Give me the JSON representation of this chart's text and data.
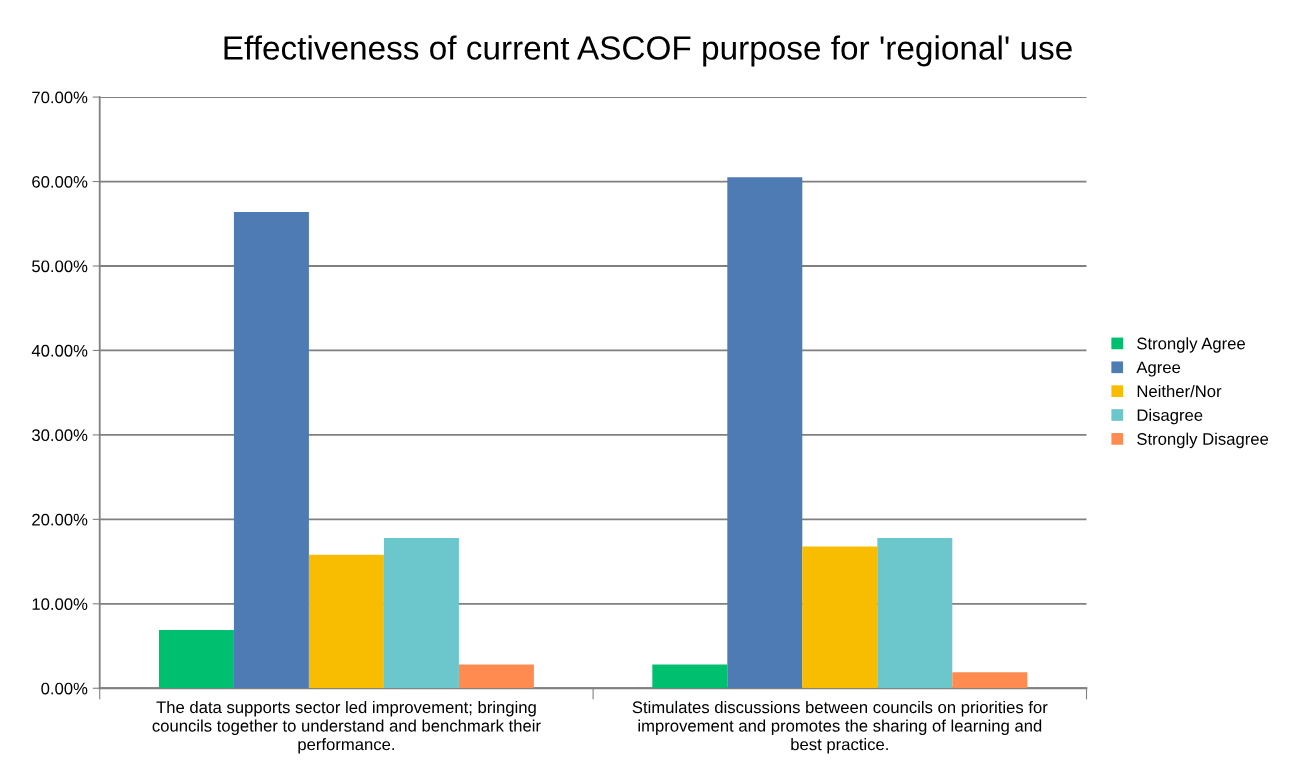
{
  "chart_data": {
    "type": "bar",
    "title": "Effectiveness of current ASCOF purpose for 'regional' use",
    "categories": [
      "The data supports sector led improvement; bringing councils together to understand and benchmark their performance.",
      "Stimulates discussions between councils on priorities for improvement and promotes the sharing of learning and best practice."
    ],
    "series": [
      {
        "name": "Strongly Agree",
        "color": "#00bf6f",
        "values": [
          6.9,
          2.8
        ]
      },
      {
        "name": "Agree",
        "color": "#4e7bb4",
        "values": [
          56.4,
          60.5
        ]
      },
      {
        "name": "Neither/Nor",
        "color": "#f8bd00",
        "values": [
          15.8,
          16.8
        ]
      },
      {
        "name": "Disagree",
        "color": "#6cc7cc",
        "values": [
          17.8,
          17.8
        ]
      },
      {
        "name": "Strongly Disagree",
        "color": "#ff8b51",
        "values": [
          2.8,
          1.9
        ]
      }
    ],
    "ylim": [
      0,
      70
    ],
    "yticks": [
      {
        "value": 0,
        "label": "0.00%"
      },
      {
        "value": 10,
        "label": "10.00%"
      },
      {
        "value": 20,
        "label": "20.00%"
      },
      {
        "value": 30,
        "label": "30.00%"
      },
      {
        "value": 40,
        "label": "40.00%"
      },
      {
        "value": 50,
        "label": "50.00%"
      },
      {
        "value": 60,
        "label": "60.00%"
      },
      {
        "value": 70,
        "label": "70.00%"
      }
    ],
    "grid": "y",
    "legend": "right"
  }
}
